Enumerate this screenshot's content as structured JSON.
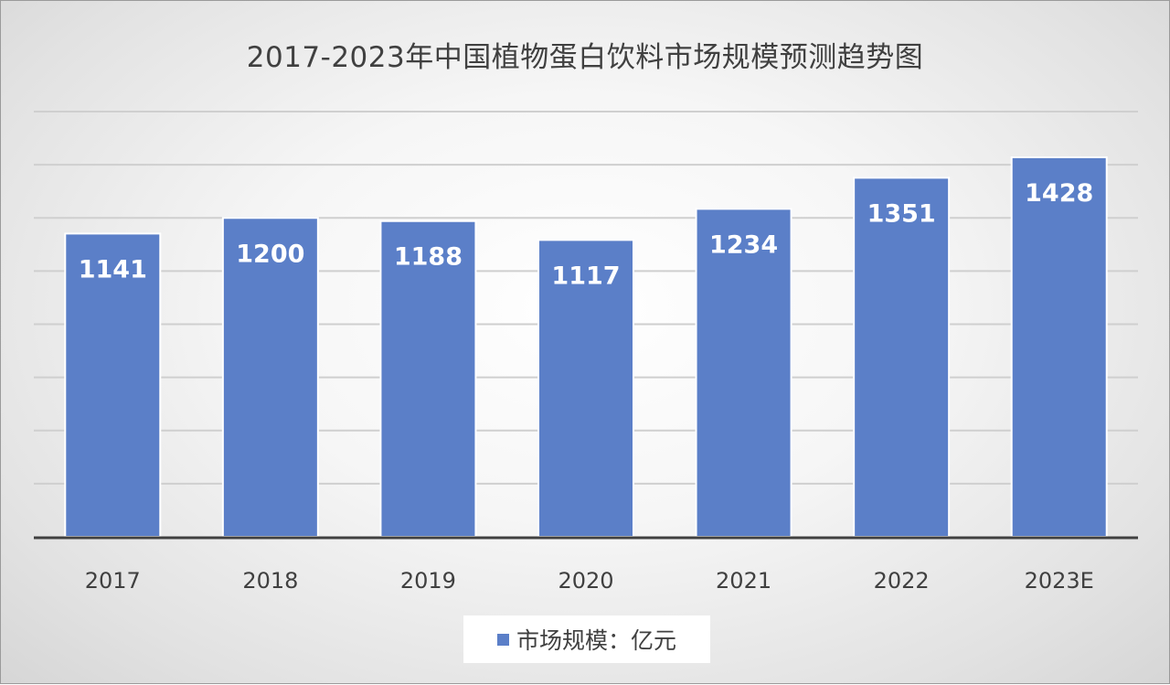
{
  "chart_data": {
    "type": "bar",
    "title": "2017-2023年中国植物蛋白饮料市场规模预测趋势图",
    "categories": [
      "2017",
      "2018",
      "2019",
      "2020",
      "2021",
      "2022",
      "2023E"
    ],
    "series": [
      {
        "name": "市场规模：亿元",
        "values": [
          1141,
          1200,
          1188,
          1117,
          1234,
          1351,
          1428
        ]
      }
    ],
    "data_labels": [
      "1141",
      "1200",
      "1188",
      "1117",
      "1234",
      "1351",
      "1428"
    ],
    "ylim": [
      0,
      1600
    ],
    "grid": true,
    "legend_position": "bottom",
    "colors": {
      "bar": "#5b7fc8",
      "label": "#ffffff",
      "axis": "#404040",
      "grid": "#cfcfcf"
    }
  }
}
